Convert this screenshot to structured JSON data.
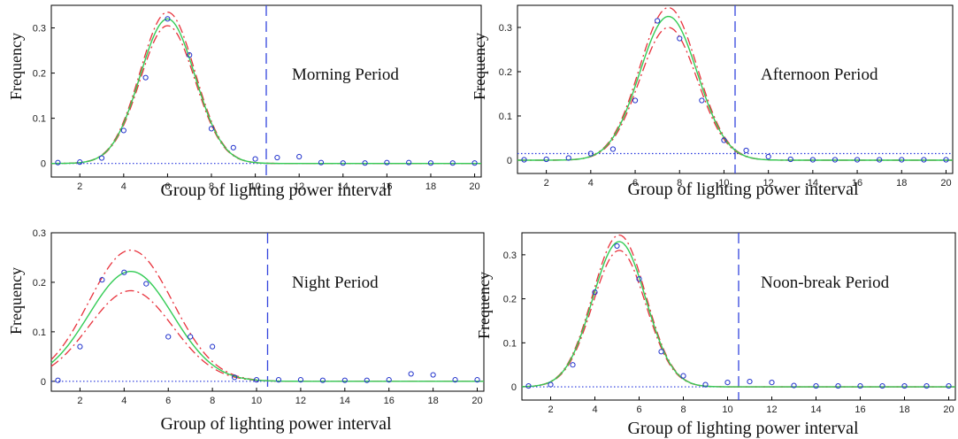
{
  "chart_data": [
    {
      "type": "line",
      "title": "",
      "period_label": "Morning Period",
      "xlabel": "Group of lighting power interval",
      "ylabel": "Frequency",
      "xlim": [
        0.7,
        20.3
      ],
      "ylim": [
        -0.03,
        0.35
      ],
      "xticks": [
        2,
        4,
        6,
        8,
        10,
        12,
        14,
        16,
        18,
        20
      ],
      "xtick_labels": [
        "2",
        "4",
        "6",
        "8",
        "10",
        "12",
        "14",
        "16",
        "18",
        "20"
      ],
      "yticks": [
        0,
        0.1,
        0.2,
        0.3
      ],
      "ytick_labels": [
        "0",
        "0.1",
        "0.2",
        "0.3"
      ],
      "divider_x": 10.5,
      "threshold_y": 0.0,
      "curve": {
        "mean": 6.0,
        "sd": 1.25,
        "peak_upper": 0.335,
        "peak_fit": 0.32,
        "peak_lower": 0.305
      },
      "points": {
        "x": [
          1,
          2,
          3,
          4,
          5,
          6,
          7,
          8,
          9,
          10,
          11,
          12,
          13,
          14,
          15,
          16,
          17,
          18,
          19,
          20
        ],
        "y": [
          0.002,
          0.003,
          0.012,
          0.073,
          0.19,
          0.32,
          0.24,
          0.077,
          0.035,
          0.01,
          0.013,
          0.015,
          0.002,
          0.001,
          0.001,
          0.002,
          0.002,
          0.001,
          0.001,
          0.001
        ]
      }
    },
    {
      "type": "line",
      "title": "",
      "period_label": "Afternoon Period",
      "xlabel": "Group of lighting power interval",
      "ylabel": "Frequency",
      "xlim": [
        0.7,
        20.3
      ],
      "ylim": [
        -0.03,
        0.35
      ],
      "xticks": [
        2,
        4,
        6,
        8,
        10,
        12,
        14,
        16,
        18,
        20
      ],
      "xtick_labels": [
        "2",
        "4",
        "6",
        "8",
        "10",
        "12",
        "14",
        "16",
        "18",
        "20"
      ],
      "yticks": [
        0,
        0.1,
        0.2,
        0.3
      ],
      "ytick_labels": [
        "0",
        "0.1",
        "0.2",
        "0.3"
      ],
      "divider_x": 10.5,
      "threshold_y": 0.015,
      "curve": {
        "mean": 7.5,
        "sd": 1.3,
        "peak_upper": 0.345,
        "peak_fit": 0.325,
        "peak_lower": 0.3
      },
      "points": {
        "x": [
          1,
          2,
          3,
          4,
          5,
          6,
          7,
          8,
          9,
          10,
          11,
          12,
          13,
          14,
          15,
          16,
          17,
          18,
          19,
          20
        ],
        "y": [
          0.001,
          0.002,
          0.005,
          0.015,
          0.025,
          0.135,
          0.315,
          0.275,
          0.135,
          0.045,
          0.022,
          0.008,
          0.002,
          0.001,
          0.001,
          0.001,
          0.001,
          0.001,
          0.001,
          0.001
        ]
      }
    },
    {
      "type": "line",
      "title": "",
      "period_label": "Night Period",
      "xlabel": "Group of lighting power interval",
      "ylabel": "Frequency",
      "xlim": [
        0.7,
        20.3
      ],
      "ylim": [
        -0.02,
        0.3
      ],
      "xticks": [
        2,
        4,
        6,
        8,
        10,
        12,
        14,
        16,
        18,
        20
      ],
      "xtick_labels": [
        "2",
        "4",
        "6",
        "8",
        "10",
        "12",
        "14",
        "16",
        "18",
        "20"
      ],
      "yticks": [
        0,
        0.1,
        0.2,
        0.3
      ],
      "ytick_labels": [
        "0",
        "0.1",
        "0.2",
        "0.3"
      ],
      "divider_x": 10.5,
      "threshold_y": 0.0,
      "curve": {
        "mean": 4.3,
        "sd": 1.9,
        "peak_upper": 0.265,
        "peak_fit": 0.222,
        "peak_lower": 0.183
      },
      "points": {
        "x": [
          1,
          2,
          3,
          4,
          5,
          6,
          7,
          8,
          9,
          10,
          11,
          12,
          13,
          14,
          15,
          16,
          17,
          18,
          19,
          20
        ],
        "y": [
          0.002,
          0.07,
          0.205,
          0.22,
          0.197,
          0.09,
          0.09,
          0.07,
          0.008,
          0.003,
          0.003,
          0.003,
          0.002,
          0.002,
          0.002,
          0.003,
          0.015,
          0.013,
          0.003,
          0.003
        ]
      }
    },
    {
      "type": "line",
      "title": "",
      "period_label": "Noon-break Period",
      "xlabel": "Group of lighting power interval",
      "ylabel": "Frequency",
      "xlim": [
        0.7,
        20.3
      ],
      "ylim": [
        -0.03,
        0.35
      ],
      "xticks": [
        2,
        4,
        6,
        8,
        10,
        12,
        14,
        16,
        18,
        20
      ],
      "xtick_labels": [
        "2",
        "4",
        "6",
        "8",
        "10",
        "12",
        "14",
        "16",
        "18",
        "20"
      ],
      "yticks": [
        0,
        0.1,
        0.2,
        0.3
      ],
      "ytick_labels": [
        "0",
        "0.1",
        "0.2",
        "0.3"
      ],
      "divider_x": 10.5,
      "threshold_y": 0.0,
      "curve": {
        "mean": 5.1,
        "sd": 1.2,
        "peak_upper": 0.345,
        "peak_fit": 0.33,
        "peak_lower": 0.31
      },
      "points": {
        "x": [
          1,
          2,
          3,
          4,
          5,
          6,
          7,
          8,
          9,
          10,
          11,
          12,
          13,
          14,
          15,
          16,
          17,
          18,
          19,
          20
        ],
        "y": [
          0.002,
          0.005,
          0.05,
          0.215,
          0.32,
          0.245,
          0.08,
          0.025,
          0.005,
          0.01,
          0.012,
          0.01,
          0.003,
          0.002,
          0.002,
          0.002,
          0.002,
          0.002,
          0.002,
          0.002
        ]
      }
    }
  ]
}
